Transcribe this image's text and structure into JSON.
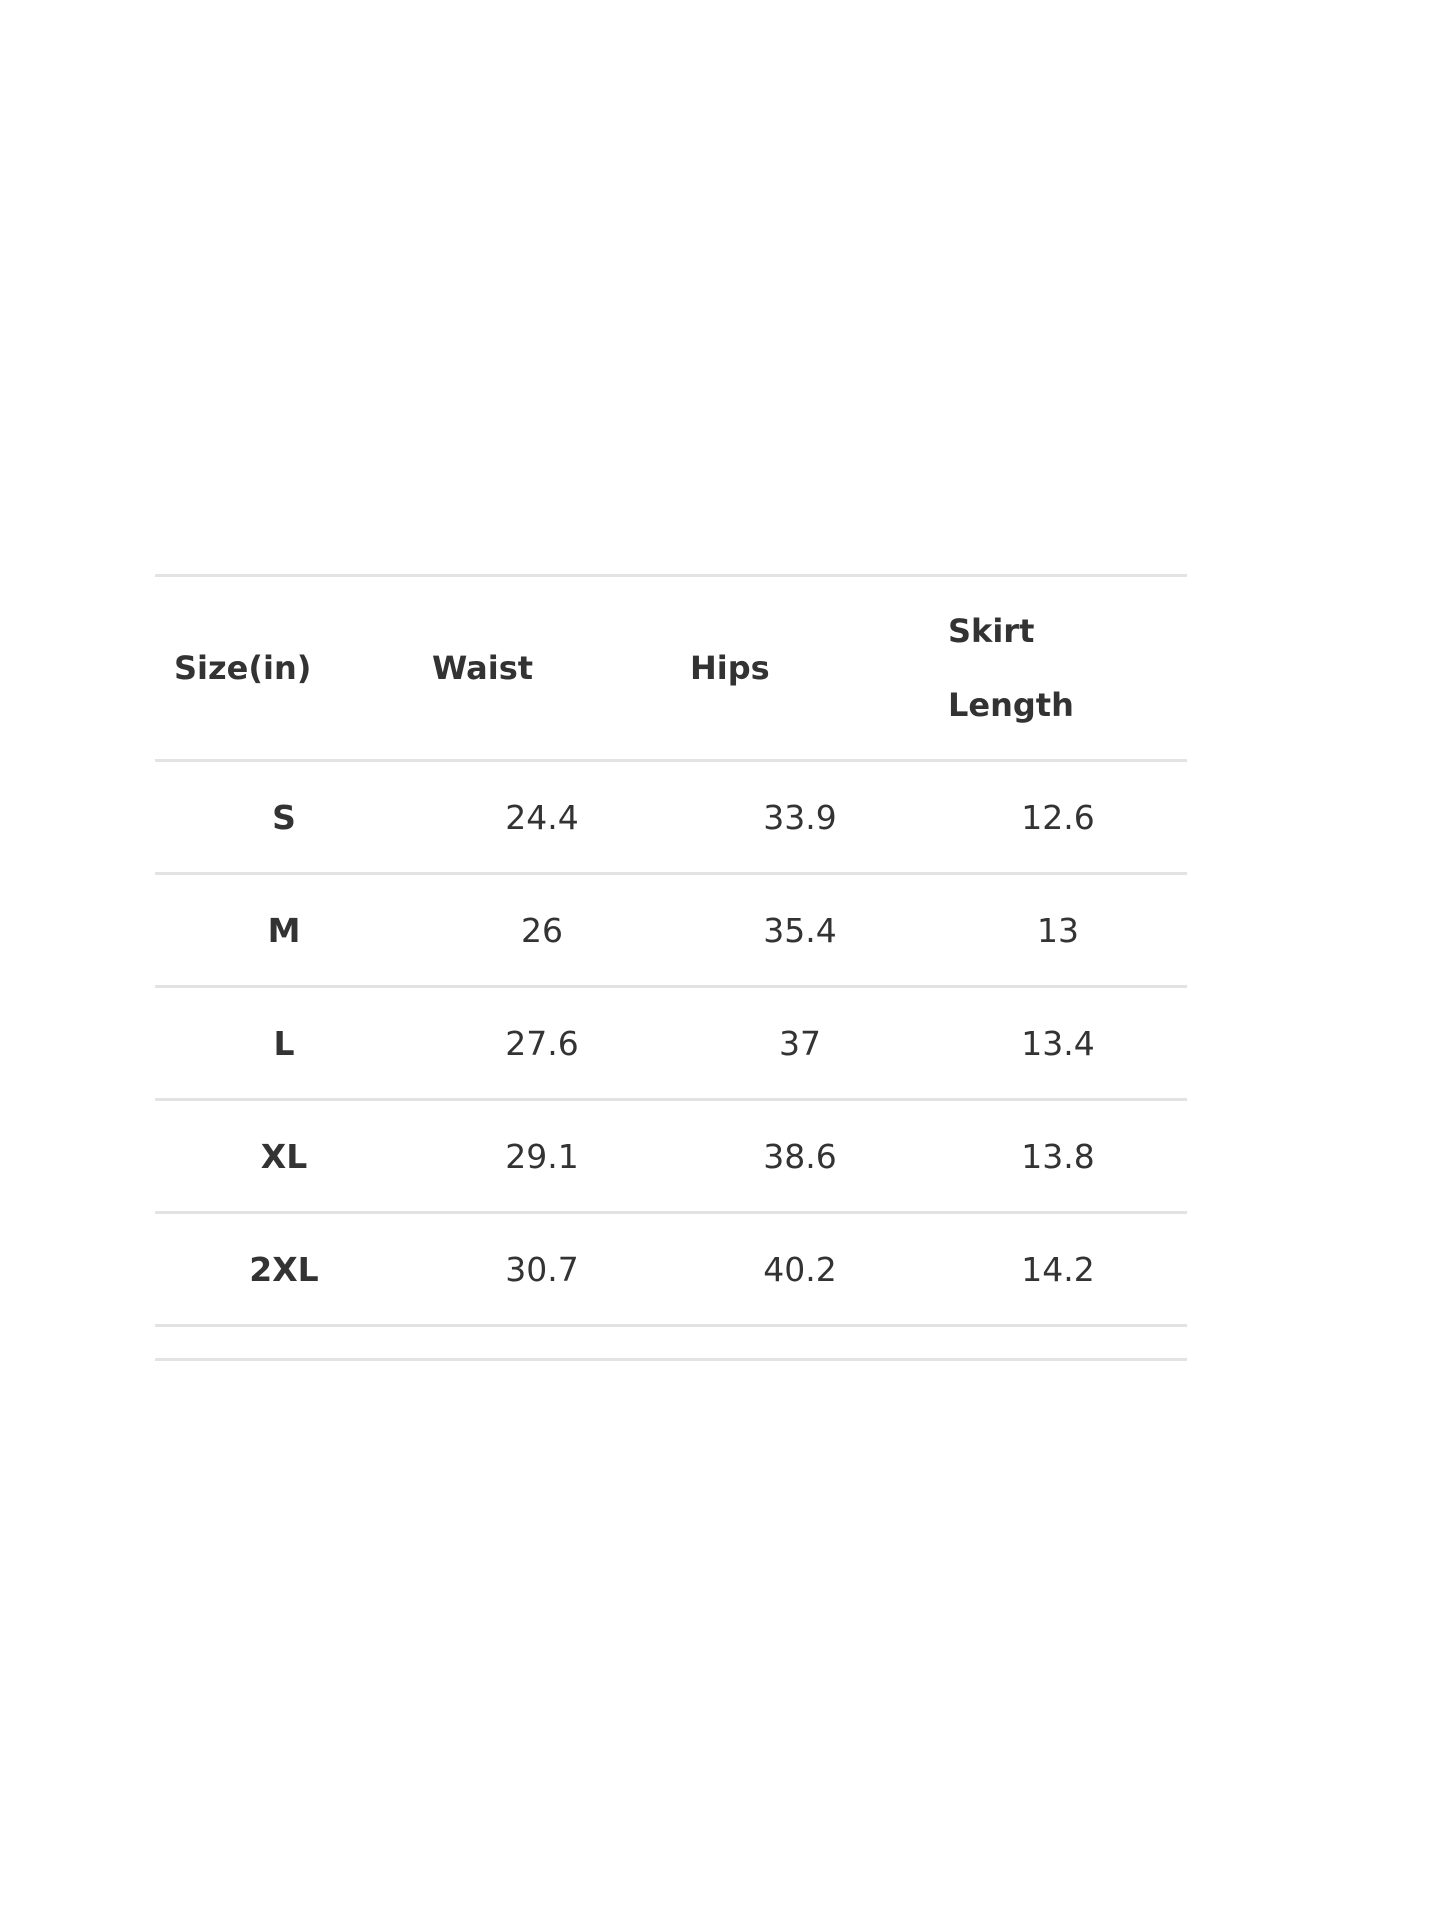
{
  "size_chart": {
    "headers": [
      "Size(in)",
      "Waist",
      "Hips",
      "Skirt Length"
    ],
    "rows": [
      {
        "size": "S",
        "waist": "24.4",
        "hips": "33.9",
        "skirt_length": "12.6"
      },
      {
        "size": "M",
        "waist": "26",
        "hips": "35.4",
        "skirt_length": "13"
      },
      {
        "size": "L",
        "waist": "27.6",
        "hips": "37",
        "skirt_length": "13.4"
      },
      {
        "size": "XL",
        "waist": "29.1",
        "hips": "38.6",
        "skirt_length": "13.8"
      },
      {
        "size": "2XL",
        "waist": "30.7",
        "hips": "40.2",
        "skirt_length": "14.2"
      }
    ]
  }
}
